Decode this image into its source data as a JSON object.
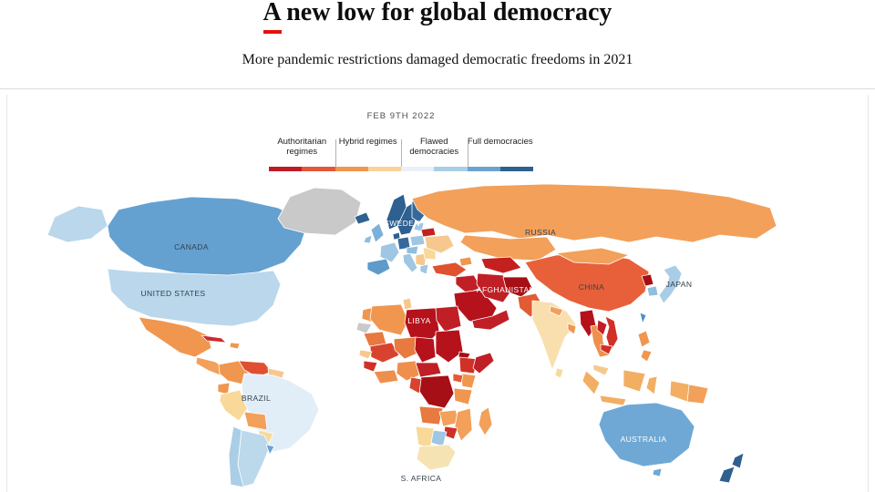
{
  "header": {
    "title": "A new low for global democracy",
    "subtitle": "More pandemic restrictions damaged democratic freedoms in 2021"
  },
  "meta": {
    "date": "FEB 9TH 2022"
  },
  "legend": {
    "categories": [
      {
        "label": "Authoritarian regimes"
      },
      {
        "label": "Hybrid regimes"
      },
      {
        "label": "Flawed democracies"
      },
      {
        "label": "Full democracies"
      }
    ],
    "bar_colors": [
      "#bf1b25",
      "#e2583a",
      "#f0964f",
      "#f7d397",
      "#e8f1f8",
      "#aacde6",
      "#6aa3d0",
      "#2e6090"
    ]
  },
  "map": {
    "labels": [
      {
        "text": "CANADA",
        "tone": "dark"
      },
      {
        "text": "UNITED STATES",
        "tone": "dark"
      },
      {
        "text": "BRAZIL",
        "tone": "dark"
      },
      {
        "text": "SWEDEN",
        "tone": "light"
      },
      {
        "text": "RUSSIA",
        "tone": "dark"
      },
      {
        "text": "LIBYA",
        "tone": "light"
      },
      {
        "text": "AFGHANISTAN",
        "tone": "light"
      },
      {
        "text": "CHINA",
        "tone": "dark"
      },
      {
        "text": "JAPAN",
        "tone": "dark"
      },
      {
        "text": "S. AFRICA",
        "tone": "dark"
      },
      {
        "text": "AUSTRALIA",
        "tone": "light"
      }
    ]
  },
  "colors": {
    "brand_red": "#e3120b",
    "no_data_gray": "#c9c9c9",
    "rule_gray": "#dcdcdc"
  }
}
